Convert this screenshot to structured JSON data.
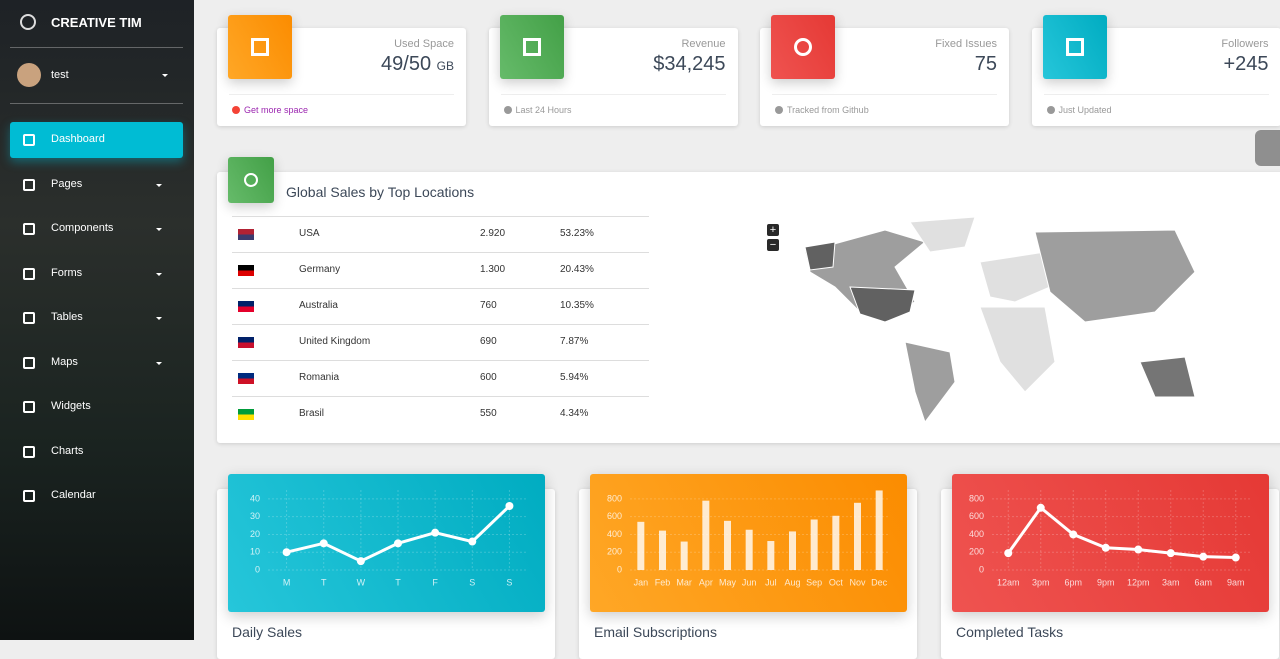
{
  "sidebar": {
    "brand": "CREATIVE TIM",
    "user": "test",
    "nav": [
      "Dashboard",
      "Pages",
      "Components",
      "Forms",
      "Tables",
      "Maps",
      "Widgets",
      "Charts",
      "Calendar"
    ]
  },
  "stats": [
    {
      "label": "Used Space",
      "value": "49/50",
      "unit": "GB",
      "footer": "Get more space"
    },
    {
      "label": "Revenue",
      "value": "$34,245",
      "footer": "Last 24 Hours"
    },
    {
      "label": "Fixed Issues",
      "value": "75",
      "footer": "Tracked from Github"
    },
    {
      "label": "Followers",
      "value": "+245",
      "footer": "Just Updated"
    }
  ],
  "sales": {
    "title": "Global Sales by Top Locations",
    "rows": [
      [
        "USA",
        "2.920",
        "53.23%"
      ],
      [
        "Germany",
        "1.300",
        "20.43%"
      ],
      [
        "Australia",
        "760",
        "10.35%"
      ],
      [
        "United Kingdom",
        "690",
        "7.87%"
      ],
      [
        "Romania",
        "600",
        "5.94%"
      ],
      [
        "Brasil",
        "550",
        "4.34%"
      ]
    ]
  },
  "map": {
    "zoom_in": "+",
    "zoom_out": "−"
  },
  "chart_data": [
    {
      "type": "line",
      "title": "Daily Sales",
      "categories": [
        "M",
        "T",
        "W",
        "T",
        "F",
        "S",
        "S"
      ],
      "values": [
        10,
        15,
        5,
        15,
        21,
        16,
        36
      ],
      "ylim": [
        0,
        45
      ],
      "yticks": [
        0,
        10,
        20,
        30,
        40
      ],
      "color": "#ffffff"
    },
    {
      "type": "bar",
      "title": "Email Subscriptions",
      "categories": [
        "Jan",
        "Feb",
        "Mar",
        "Apr",
        "May",
        "Jun",
        "Jul",
        "Aug",
        "Sep",
        "Oct",
        "Nov",
        "Dec"
      ],
      "values": [
        542,
        443,
        320,
        780,
        553,
        453,
        326,
        434,
        568,
        610,
        756,
        895
      ],
      "ylim": [
        0,
        900
      ],
      "yticks": [
        0,
        200,
        400,
        600,
        800
      ],
      "color": "#ffffff"
    },
    {
      "type": "line",
      "title": "Completed Tasks",
      "categories": [
        "12am",
        "3pm",
        "6pm",
        "9pm",
        "12pm",
        "3am",
        "6am",
        "9am"
      ],
      "values": [
        190,
        700,
        400,
        250,
        230,
        190,
        150,
        140
      ],
      "ylim": [
        0,
        900
      ],
      "yticks": [
        0,
        200,
        400,
        600,
        800
      ],
      "color": "#ffffff"
    }
  ]
}
